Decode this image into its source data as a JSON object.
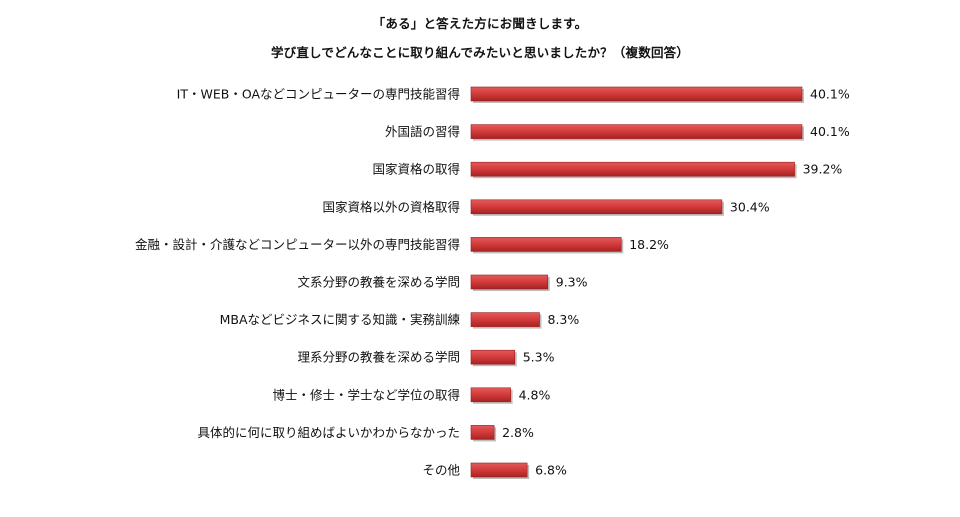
{
  "chart_data": {
    "type": "bar",
    "orientation": "horizontal",
    "title": "「ある」と答えた方にお聞きします。",
    "subtitle": "学び直しでどんなことに取り組んでみたいと思いましたか？（複数回答）",
    "categories": [
      "IT・WEB・OAなどコンピューターの専門技能習得",
      "外国語の習得",
      "国家資格の取得",
      "国家資格以外の資格取得",
      "金融・設計・介護などコンピューター以外の専門技能習得",
      "文系分野の教養を深める学問",
      "MBAなどビジネスに関する知識・実務訓練",
      "理系分野の教養を深める学問",
      "博士・修士・学士など学位の取得",
      "具体的に何に取り組めばよいかわからなかった",
      "その他"
    ],
    "values": [
      40.1,
      40.1,
      39.2,
      30.4,
      18.2,
      9.3,
      8.3,
      5.3,
      4.8,
      2.8,
      6.8
    ],
    "value_labels": [
      "40.1%",
      "40.1%",
      "39.2%",
      "30.4%",
      "18.2%",
      "9.3%",
      "8.3%",
      "5.3%",
      "4.8%",
      "2.8%",
      "6.8%"
    ],
    "unit": "%",
    "xlim": [
      0,
      40.1
    ],
    "grid": false,
    "legend": "none",
    "bar_color": "#d23a3a"
  }
}
